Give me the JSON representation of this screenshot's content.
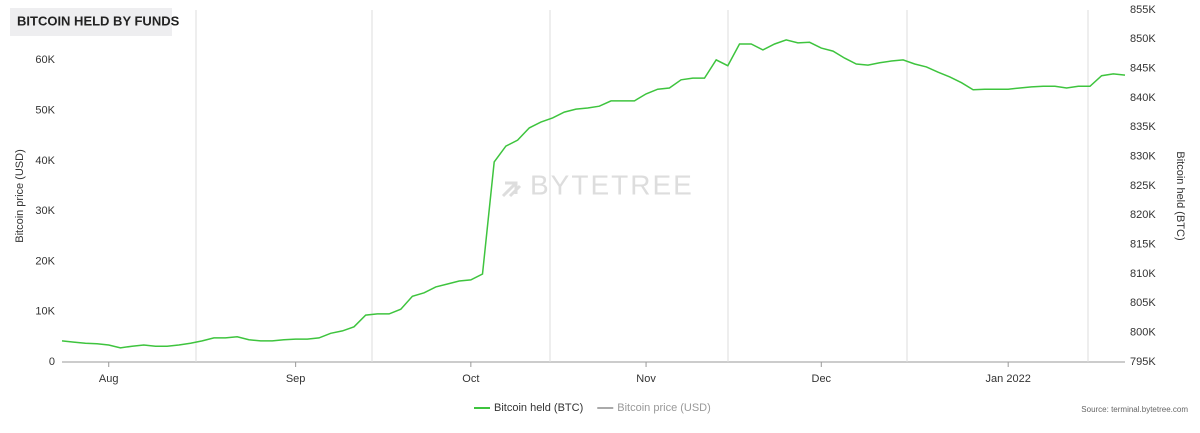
{
  "chart_data": {
    "type": "line",
    "title": "BITCOIN HELD BY FUNDS",
    "watermark": "BYTETREE",
    "source": "Source: terminal.bytetree.com",
    "y_label": "Bitcoin price (USD)",
    "y2_label": "Bitcoin held (BTC)",
    "categories": [
      null,
      null,
      null,
      null,
      "Aug",
      null,
      null,
      null,
      null,
      null,
      null,
      null,
      null,
      null,
      null,
      null,
      null,
      null,
      null,
      null,
      "Sep",
      null,
      null,
      null,
      null,
      null,
      null,
      null,
      null,
      null,
      null,
      null,
      null,
      null,
      null,
      "Oct",
      null,
      null,
      null,
      null,
      null,
      null,
      null,
      null,
      null,
      null,
      null,
      null,
      null,
      null,
      "Nov",
      null,
      null,
      null,
      null,
      null,
      null,
      null,
      null,
      null,
      null,
      null,
      null,
      null,
      null,
      "Dec",
      null,
      null,
      null,
      null,
      null,
      null,
      null,
      null,
      null,
      null,
      null,
      null,
      null,
      null,
      null,
      "Jan 2022",
      null,
      null,
      null,
      null,
      null,
      null,
      null,
      null,
      null,
      null
    ],
    "series": [
      {
        "name": "Bitcoin held (BTC)",
        "color": "#3ec43e",
        "axis": "y2",
        "visible": true,
        "values": [
          798600,
          798400,
          798200,
          798100,
          797900,
          797400,
          797700,
          797900,
          797700,
          797700,
          797900,
          798200,
          798600,
          799100,
          799100,
          799300,
          798800,
          798600,
          798600,
          798800,
          798900,
          798900,
          799100,
          799900,
          800300,
          801000,
          803000,
          803200,
          803200,
          804000,
          806200,
          806800,
          807800,
          808300,
          808800,
          809000,
          810000,
          829100,
          831800,
          832800,
          834900,
          835900,
          836600,
          837600,
          838100,
          838300,
          838600,
          839500,
          839500,
          839500,
          840700,
          841500,
          841700,
          843100,
          843400,
          843400,
          846500,
          845500,
          849200,
          849200,
          848200,
          849200,
          849900,
          849400,
          849500,
          848500,
          848000,
          846800,
          845800,
          845600,
          846000,
          846300,
          846500,
          845800,
          845300,
          844400,
          843600,
          842600,
          841400,
          841500,
          841500,
          841500,
          841700,
          841900,
          842000,
          842000,
          841700,
          842000,
          842000,
          843800,
          844100,
          843900
        ]
      },
      {
        "name": "Bitcoin price (USD)",
        "color": "#aaaaaa",
        "axis": "y",
        "visible": false,
        "values": [
          null,
          null,
          null,
          null,
          null,
          null,
          null,
          null,
          null,
          null,
          null,
          null,
          null,
          null,
          null,
          null,
          null,
          null,
          null,
          null,
          null,
          null,
          null,
          null,
          null,
          null,
          null,
          null,
          null,
          null,
          null,
          null,
          null,
          null,
          null,
          null,
          null,
          null,
          null,
          null,
          null,
          null,
          null,
          null,
          null,
          null,
          null,
          null,
          null,
          null,
          null,
          null,
          null,
          null,
          null,
          null,
          null,
          null,
          null,
          null,
          null,
          null,
          null,
          null,
          null,
          null,
          null,
          null,
          null,
          null,
          null,
          null,
          null,
          null,
          null,
          null,
          null,
          null,
          null,
          null,
          null,
          null,
          null,
          null,
          null,
          null,
          null,
          null,
          null,
          null,
          null,
          null
        ]
      }
    ],
    "ylim": [
      0,
      70000
    ],
    "yticks": [
      0,
      {
        "value": 10000,
        "label": "10K"
      },
      {
        "value": 20000,
        "label": "20K"
      },
      {
        "value": 30000,
        "label": "30K"
      },
      {
        "value": 40000,
        "label": "40K"
      },
      {
        "value": 50000,
        "label": "50K"
      },
      {
        "value": 60000,
        "label": "60K"
      }
    ],
    "y2lim": [
      795000,
      855000
    ],
    "y2ticks": [
      {
        "value": 795000,
        "label": "795K"
      },
      {
        "value": 800000,
        "label": "800K"
      },
      {
        "value": 805000,
        "label": "805K"
      },
      {
        "value": 810000,
        "label": "810K"
      },
      {
        "value": 815000,
        "label": "815K"
      },
      {
        "value": 820000,
        "label": "820K"
      },
      {
        "value": 825000,
        "label": "825K"
      },
      {
        "value": 830000,
        "label": "830K"
      },
      {
        "value": 835000,
        "label": "835K"
      },
      {
        "value": 840000,
        "label": "840K"
      },
      {
        "value": 845000,
        "label": "845K"
      },
      {
        "value": 850000,
        "label": "850K"
      },
      {
        "value": 855000,
        "label": "855K"
      }
    ]
  }
}
